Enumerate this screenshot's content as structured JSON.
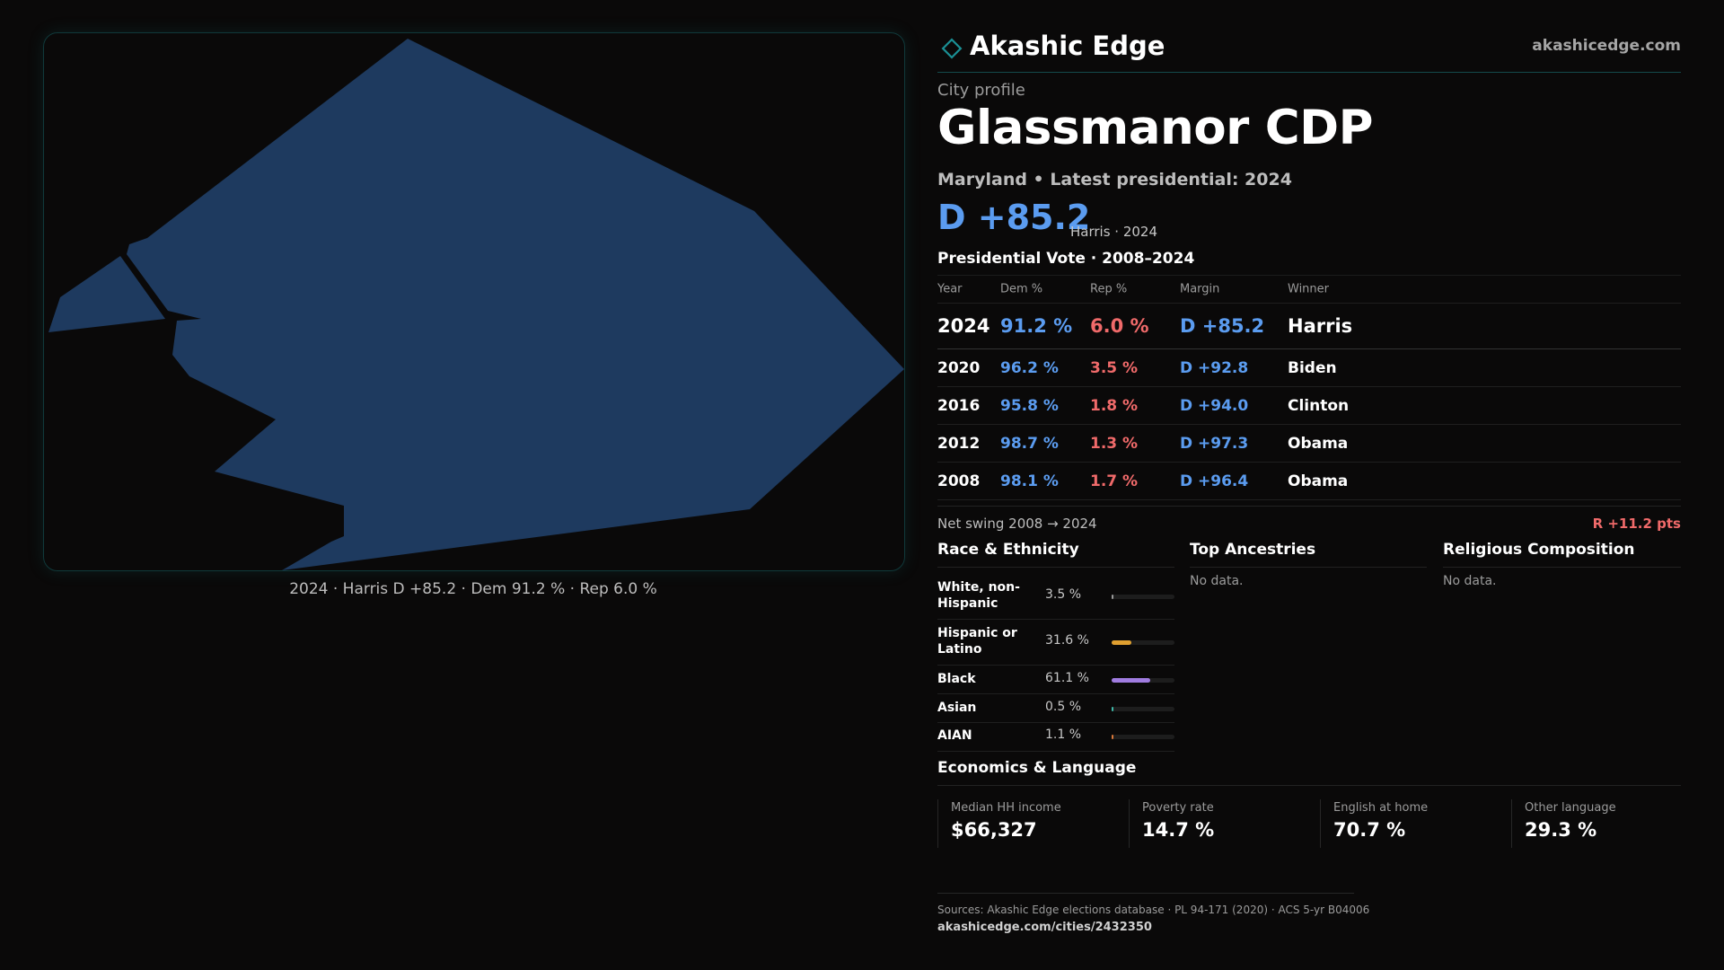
{
  "map": {
    "fill_color": "#1e3a5f",
    "caption": "2024 · Harris D +85.2 · Dem 91.2 % · Rep 6.0 %"
  },
  "brand": {
    "name": "Akashic Edge",
    "url": "akashicedge.com",
    "icon": "diamond-outline-icon",
    "accent_color": "#1a8f94"
  },
  "profile": {
    "eyebrow": "City profile",
    "title": "Glassmanor CDP",
    "subtitle": "Maryland • Latest presidential: 2024",
    "headline_margin": "D +85.2",
    "headline_note": "Harris · 2024"
  },
  "vote_table": {
    "title": "Presidential Vote · 2008–2024",
    "headers": {
      "year": "Year",
      "dem": "Dem %",
      "rep": "Rep %",
      "margin": "Margin",
      "winner": "Winner"
    },
    "latest": {
      "year": "2024",
      "dem": "91.2 %",
      "rep": "6.0 %",
      "margin": "D +85.2",
      "winner": "Harris"
    },
    "rows": [
      {
        "year": "2020",
        "dem": "96.2 %",
        "rep": "3.5 %",
        "margin": "D +92.8",
        "winner": "Biden"
      },
      {
        "year": "2016",
        "dem": "95.8 %",
        "rep": "1.8 %",
        "margin": "D +94.0",
        "winner": "Clinton"
      },
      {
        "year": "2012",
        "dem": "98.7 %",
        "rep": "1.3 %",
        "margin": "D +97.3",
        "winner": "Obama"
      },
      {
        "year": "2008",
        "dem": "98.1 %",
        "rep": "1.7 %",
        "margin": "D +96.4",
        "winner": "Obama"
      }
    ],
    "colors": {
      "dem": "#5b9cf0",
      "rep": "#f06a6a"
    }
  },
  "swing": {
    "label": "Net swing 2008 → 2024",
    "value": "R +11.2 pts"
  },
  "race": {
    "title": "Race & Ethnicity",
    "rows": [
      {
        "label": "White, non-Hispanic",
        "pct": "3.5 %",
        "value": 3.5,
        "color": "#9a9a9a"
      },
      {
        "label": "Hispanic or Latino",
        "pct": "31.6 %",
        "value": 31.6,
        "color": "#e0a030"
      },
      {
        "label": "Black",
        "pct": "61.1 %",
        "value": 61.1,
        "color": "#a07ce0"
      },
      {
        "label": "Asian",
        "pct": "0.5 %",
        "value": 0.5,
        "color": "#3fb8a8"
      },
      {
        "label": "AIAN",
        "pct": "1.1 %",
        "value": 1.1,
        "color": "#d8783a"
      }
    ]
  },
  "ancestries": {
    "title": "Top Ancestries",
    "empty": "No data."
  },
  "religion": {
    "title": "Religious Composition",
    "empty": "No data."
  },
  "economics": {
    "title": "Economics & Language",
    "stats": [
      {
        "label": "Median HH income",
        "value": "$66,327"
      },
      {
        "label": "Poverty rate",
        "value": "14.7 %"
      },
      {
        "label": "English at home",
        "value": "70.7 %"
      },
      {
        "label": "Other language",
        "value": "29.3 %"
      }
    ]
  },
  "footer": {
    "sources": "Sources: Akashic Edge elections database · PL 94-171 (2020) · ACS 5-yr B04006",
    "url": "akashicedge.com/cities/2432350"
  }
}
